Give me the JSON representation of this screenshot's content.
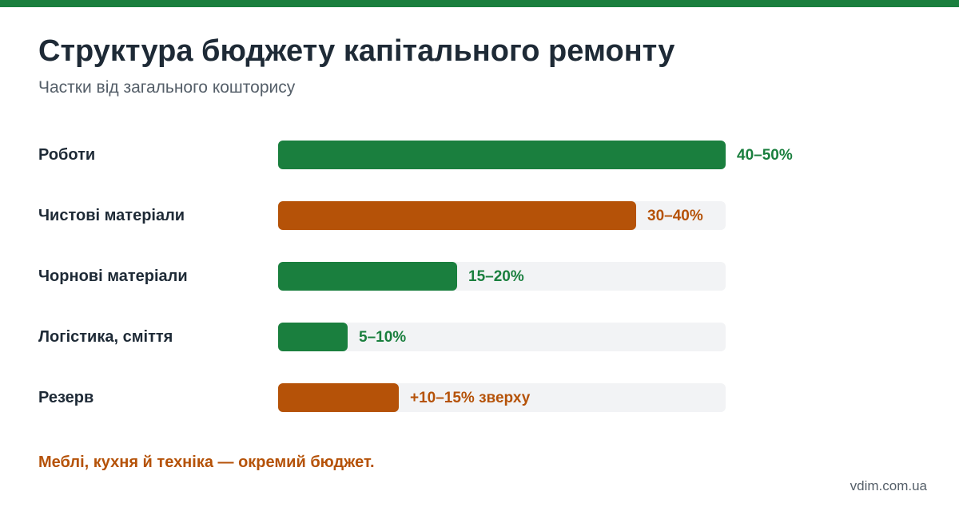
{
  "colors": {
    "accent_green": "#1a7f3e",
    "accent_orange": "#b55208",
    "track": "#f2f3f5",
    "text_dark": "#1e2a36",
    "text_muted": "#555f69"
  },
  "header": {
    "title": "Структура бюджету капітального ремонту",
    "subtitle": "Частки від загального кошторису"
  },
  "chart_data": {
    "type": "bar",
    "orientation": "horizontal",
    "title": "Структура бюджету капітального ремонту",
    "subtitle": "Частки від загального кошторису",
    "xlim": [
      0,
      50
    ],
    "grid": false,
    "bars": [
      {
        "category": "Роботи",
        "value": 50,
        "label": "40–50%",
        "color": "#1a7f3e"
      },
      {
        "category": "Чистові матеріали",
        "value": 40,
        "label": "30–40%",
        "color": "#b55208"
      },
      {
        "category": "Чорнові матеріали",
        "value": 20,
        "label": "15–20%",
        "color": "#1a7f3e"
      },
      {
        "category": "Логістика, сміття",
        "value": 7.8,
        "label": "5–10%",
        "color": "#1a7f3e"
      },
      {
        "category": "Резерв",
        "value": 13.5,
        "label": "+10–15% зверху",
        "color": "#b55208"
      }
    ]
  },
  "footer": {
    "note": "Меблі, кухня й техніка — окремий бюджет.",
    "source": "vdim.com.ua"
  }
}
